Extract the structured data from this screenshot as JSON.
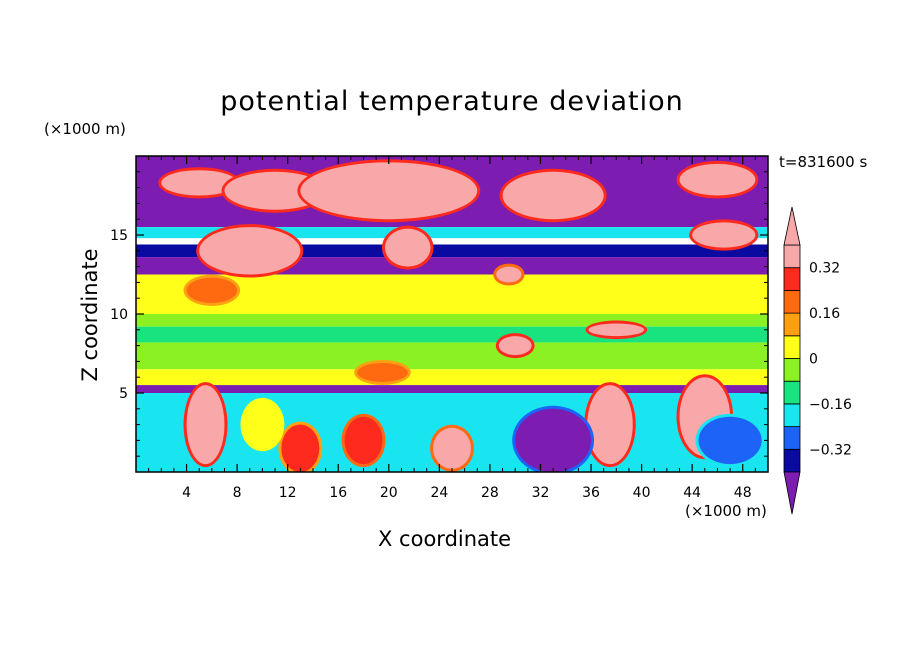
{
  "chart_data": {
    "type": "heatmap",
    "title": "potential temperature deviation",
    "xlabel": "X coordinate",
    "ylabel": "Z coordinate",
    "x_unit": "(×1000 m)",
    "y_unit": "(×1000 m)",
    "time_label": "t=831600 s",
    "xlim": [
      0,
      50
    ],
    "ylim": [
      0,
      20
    ],
    "x_ticks": [
      "4",
      "8",
      "12",
      "16",
      "20",
      "24",
      "28",
      "32",
      "36",
      "40",
      "44",
      "48"
    ],
    "y_ticks": [
      "5",
      "10",
      "15"
    ],
    "colorbar": {
      "levels": [
        -0.4,
        -0.32,
        -0.24,
        -0.16,
        -0.08,
        0,
        0.08,
        0.16,
        0.24,
        0.32,
        0.4
      ],
      "colors": [
        "#7d1cb0",
        "#0a0aa0",
        "#1c63f6",
        "#18e5f0",
        "#19e37f",
        "#8bf123",
        "#ffff1a",
        "#ffa012",
        "#ff6a11",
        "#ff2a1e",
        "#f8a8a8"
      ],
      "labels": [
        "0.32",
        "0.16",
        "0",
        "-0.16",
        "-0.32"
      ],
      "label_values": [
        0.32,
        0.16,
        0,
        -0.16,
        -0.32
      ]
    },
    "bands": [
      {
        "z": [
          17.5,
          20
        ],
        "value": -0.45
      },
      {
        "z": [
          15.5,
          17.5
        ],
        "value": -0.45
      },
      {
        "z": [
          14.8,
          15.5
        ],
        "value": -0.2
      },
      {
        "z": [
          13.6,
          14.4
        ],
        "value": -0.35
      },
      {
        "z": [
          12.5,
          13.6
        ],
        "value": -0.45
      },
      {
        "z": [
          10,
          12.5
        ],
        "value": 0.05
      },
      {
        "z": [
          9.2,
          10
        ],
        "value": -0.05
      },
      {
        "z": [
          8.2,
          9.2
        ],
        "value": -0.12
      },
      {
        "z": [
          6.5,
          8.2
        ],
        "value": -0.02
      },
      {
        "z": [
          5.5,
          6.5
        ],
        "value": 0.02
      },
      {
        "z": [
          5,
          5.5
        ],
        "value": -0.45
      },
      {
        "z": [
          0,
          5
        ],
        "value": -0.18
      }
    ],
    "blobs": [
      {
        "x": 5,
        "z": 18.3,
        "rx": 3,
        "rz": 0.8,
        "value": 0.45
      },
      {
        "x": 11,
        "z": 17.8,
        "rx": 4,
        "rz": 1.2,
        "value": 0.45
      },
      {
        "x": 20,
        "z": 17.8,
        "rx": 7,
        "rz": 1.8,
        "value": 0.45
      },
      {
        "x": 33,
        "z": 17.5,
        "rx": 4,
        "rz": 1.5,
        "value": 0.45
      },
      {
        "x": 46,
        "z": 18.5,
        "rx": 3,
        "rz": 1,
        "value": 0.45
      },
      {
        "x": 9,
        "z": 14,
        "rx": 4,
        "rz": 1.5,
        "value": 0.45
      },
      {
        "x": 21.5,
        "z": 14.2,
        "rx": 1.8,
        "rz": 1.2,
        "value": 0.45
      },
      {
        "x": 46.5,
        "z": 15,
        "rx": 2.5,
        "rz": 0.8,
        "value": 0.45
      },
      {
        "x": 29.5,
        "z": 12.5,
        "rx": 1,
        "rz": 0.5,
        "value": 0.35
      },
      {
        "x": 6,
        "z": 11.5,
        "rx": 2,
        "rz": 0.8,
        "value": 0.16
      },
      {
        "x": 19.5,
        "z": 6.3,
        "rx": 2,
        "rz": 0.6,
        "value": 0.2
      },
      {
        "x": 30,
        "z": 8,
        "rx": 1.3,
        "rz": 0.6,
        "value": 0.45
      },
      {
        "x": 38,
        "z": 9,
        "rx": 2.2,
        "rz": 0.4,
        "value": 0.45
      },
      {
        "x": 5.5,
        "z": 3,
        "rx": 1.5,
        "rz": 2.5,
        "value": 0.45
      },
      {
        "x": 37.5,
        "z": 3,
        "rx": 1.8,
        "rz": 2.5,
        "value": 0.45
      },
      {
        "x": 45,
        "z": 3.5,
        "rx": 2,
        "rz": 2.5,
        "value": 0.45
      },
      {
        "x": 18,
        "z": 2,
        "rx": 1.5,
        "rz": 1.5,
        "value": 0.3
      },
      {
        "x": 25,
        "z": 1.5,
        "rx": 1.5,
        "rz": 1.3,
        "value": 0.32
      },
      {
        "x": 13,
        "z": 1.5,
        "rx": 1.5,
        "rz": 1.5,
        "value": 0.25
      },
      {
        "x": 33,
        "z": 2,
        "rx": 3,
        "rz": 2,
        "value": -0.45
      },
      {
        "x": 47,
        "z": 2,
        "rx": 2.5,
        "rz": 1.5,
        "value": -0.3
      },
      {
        "x": 10,
        "z": 3,
        "rx": 1.5,
        "rz": 1.5,
        "value": 0.05
      }
    ]
  }
}
